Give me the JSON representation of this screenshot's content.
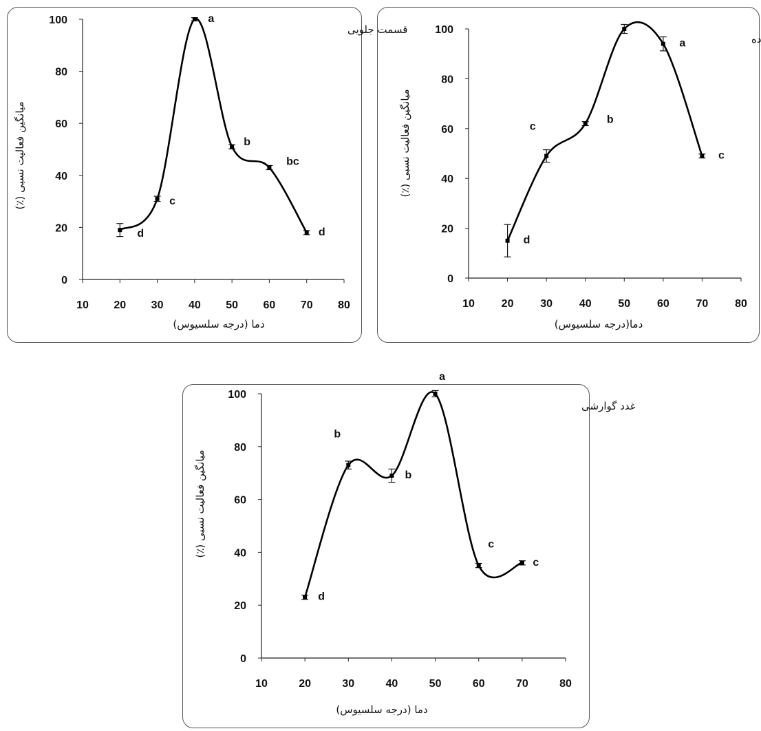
{
  "chart_data": [
    {
      "type": "line",
      "title": "قسمت جلویی",
      "xlabel": "دما (درجه سلسیوس)",
      "ylabel": "میانگین فعالیت نسبی (٪)",
      "xlim": [
        10,
        80
      ],
      "ylim": [
        0,
        100
      ],
      "xticks": [
        10,
        20,
        30,
        40,
        50,
        60,
        70,
        80
      ],
      "yticks": [
        0,
        20,
        40,
        60,
        80,
        100
      ],
      "grid": false,
      "series": [
        {
          "x": [
            20,
            30,
            40,
            50,
            60,
            70
          ],
          "values": [
            19,
            31,
            100,
            51,
            43,
            18
          ],
          "error": [
            2.5,
            1,
            0.6,
            0.8,
            0.8,
            0.8
          ],
          "labels": [
            "d",
            "c",
            "a",
            "b",
            "bc",
            "d"
          ]
        }
      ]
    },
    {
      "type": "line",
      "title": "روده",
      "xlabel": "دما(درجه سلسیوس)",
      "ylabel": "میانگین فعالیت نسبی (٪)",
      "xlim": [
        10,
        80
      ],
      "ylim": [
        0,
        100
      ],
      "xticks": [
        10,
        20,
        30,
        40,
        50,
        60,
        70,
        80
      ],
      "yticks": [
        0,
        20,
        40,
        60,
        80,
        100
      ],
      "grid": false,
      "series": [
        {
          "x": [
            20,
            30,
            40,
            50,
            60,
            70
          ],
          "values": [
            15,
            49,
            62,
            100,
            94,
            49
          ],
          "error": [
            6.5,
            2.5,
            0.8,
            1.8,
            2.8,
            0.8
          ],
          "labels": [
            "d",
            "c",
            "b",
            "a",
            "a",
            "c"
          ]
        }
      ]
    },
    {
      "type": "line",
      "title": "غدد گوارشی",
      "xlabel": "دما (درجه سلسیوس)",
      "ylabel": "میانگین فعالیت نسبی (٪)",
      "xlim": [
        10,
        80
      ],
      "ylim": [
        0,
        100
      ],
      "xticks": [
        10,
        20,
        30,
        40,
        50,
        60,
        70,
        80
      ],
      "yticks": [
        0,
        20,
        40,
        60,
        80,
        100
      ],
      "grid": false,
      "series": [
        {
          "x": [
            20,
            30,
            40,
            50,
            60,
            70
          ],
          "values": [
            23,
            73,
            69,
            100,
            35,
            36
          ],
          "error": [
            0.8,
            1.5,
            2.5,
            1.2,
            0.8,
            0.8
          ],
          "labels": [
            "d",
            "b",
            "b",
            "a",
            "c",
            "c"
          ]
        }
      ]
    }
  ]
}
